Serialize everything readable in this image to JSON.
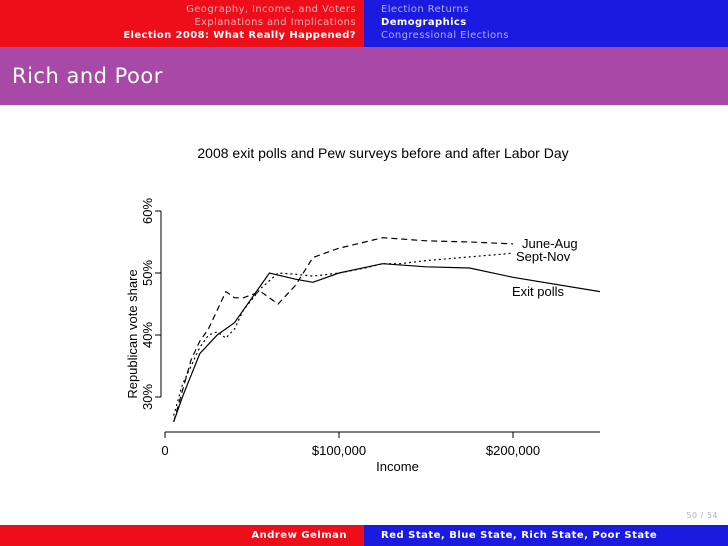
{
  "header": {
    "left_sections": [
      {
        "label": "Geography, Income, and Voters",
        "active": false
      },
      {
        "label": "Explanations and Implications",
        "active": false
      },
      {
        "label": "Election 2008: What Really Happened?",
        "active": true
      }
    ],
    "right_sections": [
      {
        "label": "Election Returns",
        "active": false
      },
      {
        "label": "Demographics",
        "active": true
      },
      {
        "label": "Congressional Elections",
        "active": false
      }
    ]
  },
  "frame_title": "Rich and Poor",
  "chart_data": {
    "type": "line",
    "title": "2008 exit polls and Pew surveys before and after Labor Day",
    "xlabel": "Income",
    "ylabel": "Republican vote share",
    "xlim": [
      0,
      250000
    ],
    "ylim": [
      25,
      65
    ],
    "x_ticks": [
      {
        "value": 0,
        "label": "0"
      },
      {
        "value": 100000,
        "label": "$100,000"
      },
      {
        "value": 200000,
        "label": "$200,000"
      }
    ],
    "y_ticks": [
      {
        "value": 30,
        "label": "30%"
      },
      {
        "value": 40,
        "label": "40%"
      },
      {
        "value": 50,
        "label": "50%"
      },
      {
        "value": 60,
        "label": "60%"
      }
    ],
    "series": [
      {
        "name": "June-Aug",
        "style": "dashed",
        "x": [
          5000,
          10000,
          15000,
          20000,
          25000,
          30000,
          35000,
          40000,
          45000,
          55000,
          65000,
          75000,
          85000,
          100000,
          115000,
          125000,
          135000,
          150000,
          175000,
          200000
        ],
        "y": [
          26,
          31,
          36,
          39,
          41,
          44,
          47,
          46,
          46,
          47,
          45,
          48,
          52.5,
          54,
          55,
          55.7,
          55.5,
          55.2,
          55,
          54.7
        ]
      },
      {
        "name": "Sept-Nov",
        "style": "dotted",
        "x": [
          5000,
          10000,
          15000,
          20000,
          25000,
          30000,
          35000,
          40000,
          45000,
          55000,
          65000,
          75000,
          85000,
          100000,
          115000,
          125000,
          135000,
          150000,
          175000,
          200000
        ],
        "y": [
          27,
          32,
          35,
          38,
          40,
          40.5,
          39.5,
          41,
          44,
          47.5,
          50,
          49.8,
          49.5,
          50,
          50.8,
          51.5,
          51.5,
          52,
          52.6,
          53.2
        ]
      },
      {
        "name": "Exit polls",
        "style": "solid",
        "x": [
          5000,
          10000,
          15000,
          20000,
          30000,
          40000,
          50000,
          60000,
          75000,
          85000,
          100000,
          125000,
          150000,
          175000,
          200000,
          250000
        ],
        "y": [
          26,
          30,
          33.5,
          37,
          40,
          42,
          46,
          50,
          49,
          48.5,
          50,
          51.5,
          51,
          50.8,
          49.3,
          47
        ]
      }
    ]
  },
  "page_number": "50 / 54",
  "footer": {
    "author": "Andrew Gelman",
    "talk_title": "Red State, Blue State, Rich State, Poor State"
  }
}
